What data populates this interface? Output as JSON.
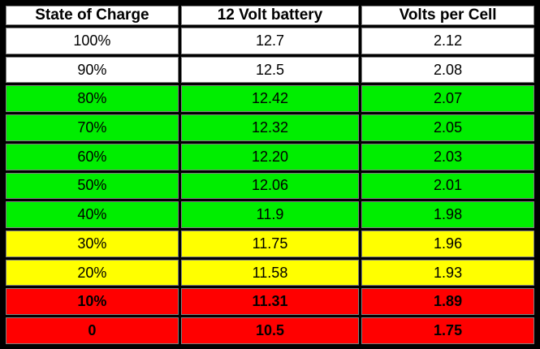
{
  "table": {
    "headers": [
      "State of Charge",
      "12 Volt battery",
      "Volts per Cell"
    ],
    "rows": [
      {
        "cells": [
          "100%",
          "12.7",
          "2.12"
        ],
        "status": "white"
      },
      {
        "cells": [
          "90%",
          "12.5",
          "2.08"
        ],
        "status": "white"
      },
      {
        "cells": [
          "80%",
          "12.42",
          "2.07"
        ],
        "status": "green"
      },
      {
        "cells": [
          "70%",
          "12.32",
          "2.05"
        ],
        "status": "green"
      },
      {
        "cells": [
          "60%",
          "12.20",
          "2.03"
        ],
        "status": "green"
      },
      {
        "cells": [
          "50%",
          "12.06",
          "2.01"
        ],
        "status": "green"
      },
      {
        "cells": [
          "40%",
          "11.9",
          "1.98"
        ],
        "status": "green"
      },
      {
        "cells": [
          "30%",
          "11.75",
          "1.96"
        ],
        "status": "yellow"
      },
      {
        "cells": [
          "20%",
          "11.58",
          "1.93"
        ],
        "status": "yellow"
      },
      {
        "cells": [
          "10%",
          "11.31",
          "1.89"
        ],
        "status": "red"
      },
      {
        "cells": [
          "0",
          "10.5",
          "1.75"
        ],
        "status": "red"
      }
    ]
  },
  "colors": {
    "white": "#ffffff",
    "green": "#00ee00",
    "yellow": "#ffff00",
    "red": "#ff0000",
    "frame": "#000000"
  }
}
